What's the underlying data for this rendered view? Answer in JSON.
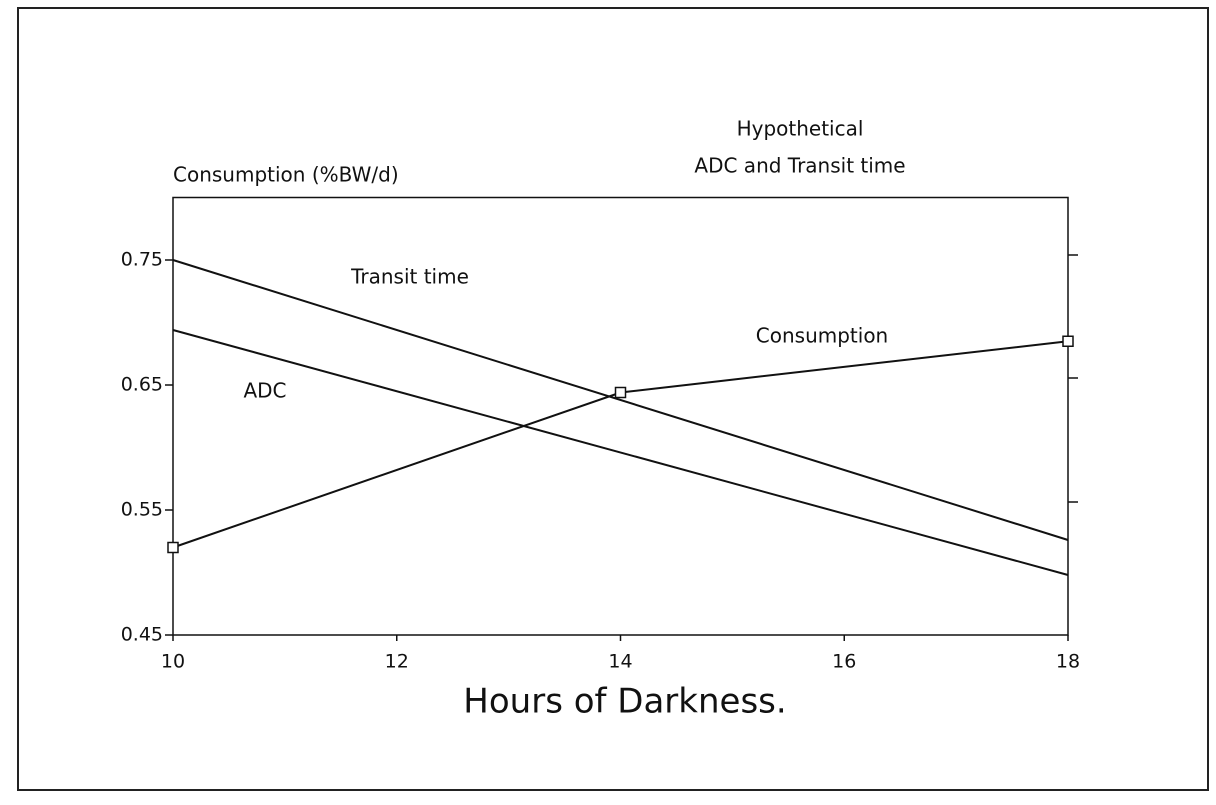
{
  "chart_data": {
    "type": "line",
    "y_label": "Consumption (%BW/d)",
    "y2_label_lines": [
      "Hypothetical",
      "ADC and Transit time"
    ],
    "x_label": "Hours of Darkness.",
    "xlim": [
      10,
      18
    ],
    "xticks": [
      10,
      12,
      14,
      16,
      18
    ],
    "ylim": [
      0.45,
      0.8
    ],
    "yticks": [
      0.45,
      0.55,
      0.65,
      0.75
    ],
    "series": [
      {
        "name": "Consumption",
        "color": "#111111",
        "markers": true,
        "x": [
          10,
          14,
          18
        ],
        "values": [
          0.52,
          0.644,
          0.685
        ]
      },
      {
        "name": "Transit time",
        "color": "#111111",
        "markers": false,
        "x": [
          10,
          18
        ],
        "values": [
          0.75,
          0.526
        ]
      },
      {
        "name": "ADC",
        "color": "#111111",
        "markers": false,
        "x": [
          10,
          18
        ],
        "values": [
          0.694,
          0.498
        ]
      }
    ]
  }
}
